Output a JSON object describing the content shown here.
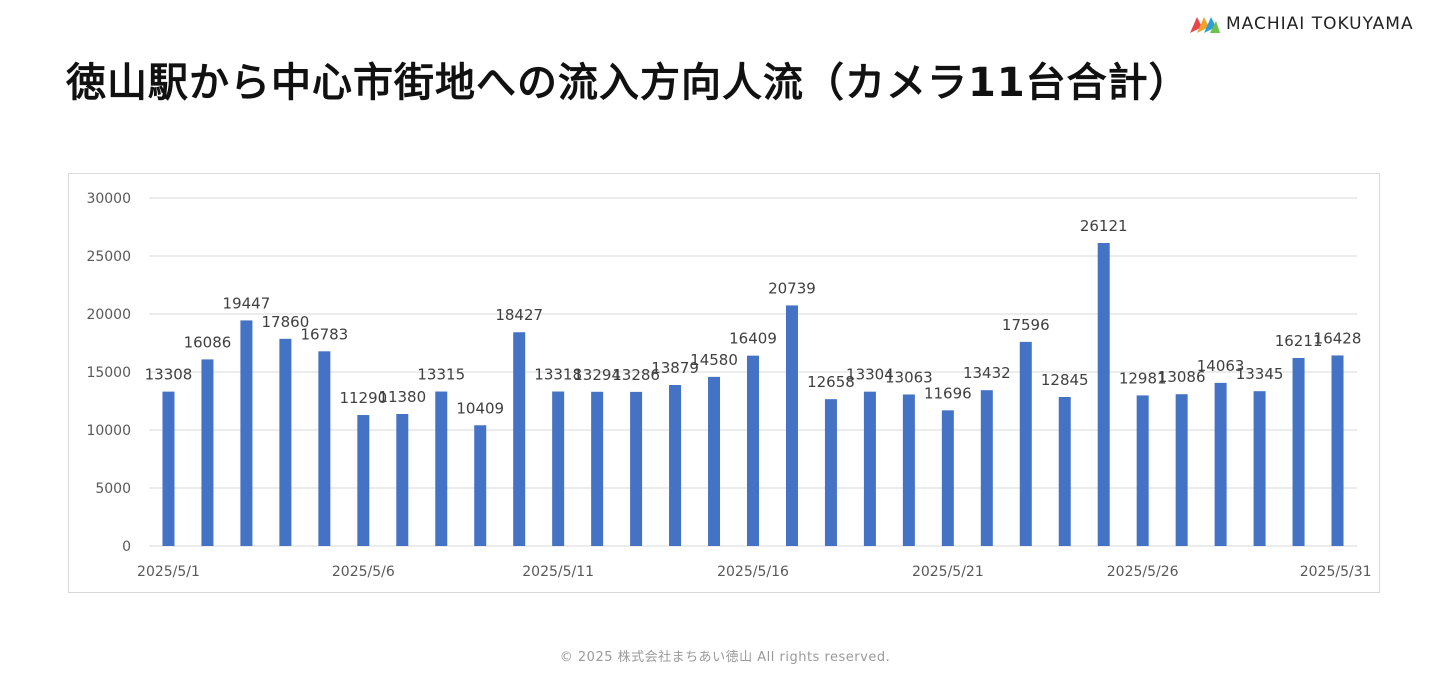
{
  "brand": {
    "name": "MACHIAI TOKUYAMA",
    "logo_icon": "machiai-logo-icon"
  },
  "title": "徳山駅から中心市街地への流入方向人流（カメラ11台合計）",
  "footer": "© 2025 株式会社まちあい徳山  All rights reserved.",
  "colors": {
    "bar": "#4472c4",
    "grid": "#d9d9d9",
    "axis_text": "#595959",
    "label_text": "#404040"
  },
  "chart_data": {
    "type": "bar",
    "title": "",
    "xlabel": "",
    "ylabel": "",
    "ylim": [
      0,
      30000
    ],
    "yticks": [
      0,
      5000,
      10000,
      15000,
      20000,
      25000,
      30000
    ],
    "grid": true,
    "legend": "none",
    "data_labels": true,
    "categories": [
      "2025/5/1",
      "2025/5/2",
      "2025/5/3",
      "2025/5/4",
      "2025/5/5",
      "2025/5/6",
      "2025/5/7",
      "2025/5/8",
      "2025/5/9",
      "2025/5/10",
      "2025/5/11",
      "2025/5/12",
      "2025/5/13",
      "2025/5/14",
      "2025/5/15",
      "2025/5/16",
      "2025/5/17",
      "2025/5/18",
      "2025/5/19",
      "2025/5/20",
      "2025/5/21",
      "2025/5/22",
      "2025/5/23",
      "2025/5/24",
      "2025/5/25",
      "2025/5/26",
      "2025/5/27",
      "2025/5/28",
      "2025/5/29",
      "2025/5/30",
      "2025/5/31"
    ],
    "x_tick_labels": [
      "2025/5/1",
      "2025/5/6",
      "2025/5/11",
      "2025/5/16",
      "2025/5/21",
      "2025/5/26",
      "2025/5/31"
    ],
    "values": [
      13308,
      16086,
      19447,
      17860,
      16783,
      11290,
      11380,
      13315,
      10409,
      18427,
      13318,
      13294,
      13286,
      13879,
      14580,
      16409,
      20739,
      12658,
      13304,
      13063,
      11696,
      13432,
      17596,
      12845,
      26121,
      12981,
      13086,
      14063,
      13345,
      16211,
      16428
    ]
  }
}
